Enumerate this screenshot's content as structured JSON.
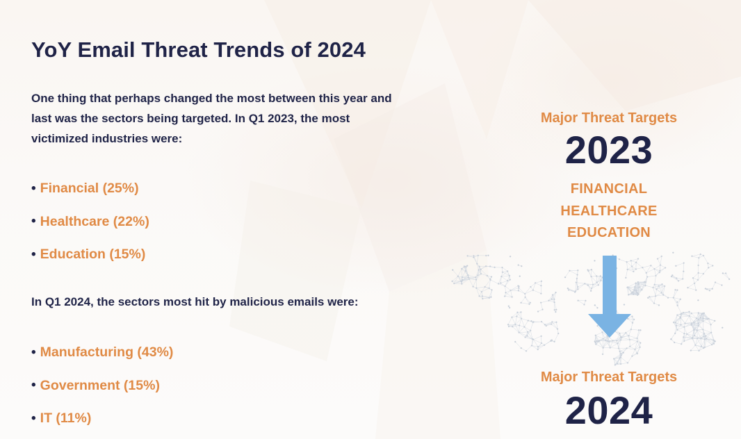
{
  "title": "YoY Email Threat Trends of 2024",
  "intro_2023": "One thing that perhaps changed the most between this year and last was the sectors being targeted. In Q1 2023, the most victimized industries were:",
  "list_2023": [
    {
      "bullet": "•",
      "text": "Financial (25%)"
    },
    {
      "bullet": "•",
      "text": "Healthcare (22%)"
    },
    {
      "bullet": "•",
      "text": "Education (15%)"
    }
  ],
  "intro_2024": "In Q1 2024, the sectors most hit by malicious emails were:",
  "list_2024": [
    {
      "bullet": "•",
      "text": "Manufacturing (43%)"
    },
    {
      "bullet": "•",
      "text": "Government (15%)"
    },
    {
      "bullet": "•",
      "text": "IT (11%)"
    }
  ],
  "graphic": {
    "label_2023": "Major Threat Targets",
    "year_2023": "2023",
    "sectors_2023": [
      "FINANCIAL",
      "HEALTHCARE",
      "EDUCATION"
    ],
    "arrow_icon": "down-arrow-icon",
    "label_2024": "Major Threat Targets",
    "year_2024": "2024"
  },
  "colors": {
    "navy": "#1f2347",
    "orange": "#e08a45",
    "arrow_blue": "#7ab3e3",
    "background": "#fbf9f7"
  }
}
